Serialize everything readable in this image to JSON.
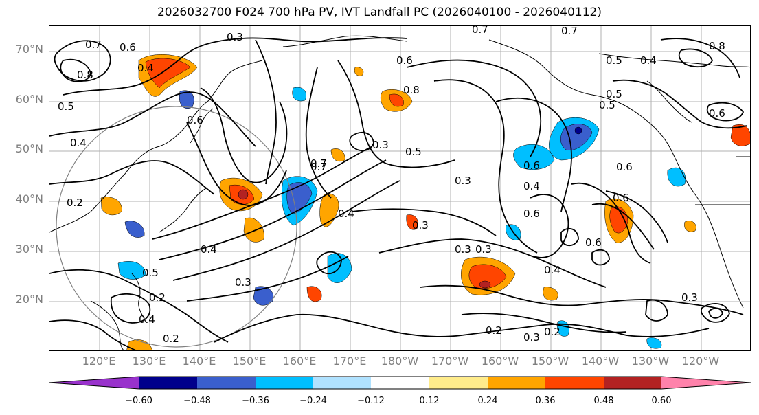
{
  "title": "2026032700 F024 700 hPa PV, IVT Landfall PC (2026040100 - 2026040112)",
  "map": {
    "lat_labels": [
      "70°N",
      "60°N",
      "50°N",
      "40°N",
      "30°N",
      "20°N"
    ],
    "lon_labels": [
      "120°E",
      "130°E",
      "140°E",
      "150°E",
      "160°E",
      "170°E",
      "180°W",
      "170°W",
      "160°W",
      "150°W",
      "140°W",
      "130°W",
      "120°W"
    ],
    "contour_labels": [
      "0.7",
      "0.6",
      "0.8",
      "0.5",
      "0.6",
      "0.3",
      "0.4",
      "0.8",
      "0.7",
      "0.6",
      "0.5",
      "0.7",
      "0.4",
      "0.3",
      "0.6",
      "0.3",
      "0.7",
      "0.8",
      "0.5",
      "0.6",
      "0.2",
      "0.3",
      "0.4",
      "0.5",
      "0.2",
      "0.4",
      "0.2",
      "0.3",
      "0.3",
      "0.4",
      "0.3",
      "0.6",
      "0.6",
      "0.5",
      "0.6",
      "0.4",
      "0.6",
      "0.3",
      "0.2",
      "0.2",
      "0.3",
      "0.5",
      "0.7",
      "0.4",
      "0.4"
    ]
  },
  "colorbar": {
    "ticks": [
      "−0.60",
      "−0.48",
      "−0.36",
      "−0.24",
      "−0.12",
      "0.12",
      "0.24",
      "0.36",
      "0.48",
      "0.60"
    ],
    "colors": [
      "#9932CC",
      "#00008B",
      "#3A5FCD",
      "#00BFFF",
      "#B0E2FF",
      "#FFFFFF",
      "#FFEC8B",
      "#FFA500",
      "#FF4500",
      "#B22222",
      "#FF82AB"
    ]
  }
}
